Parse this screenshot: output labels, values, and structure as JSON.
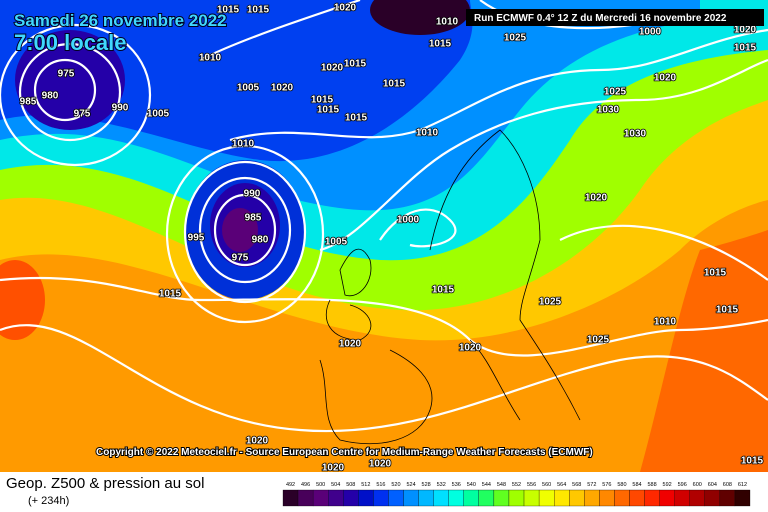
{
  "header": {
    "date": "Samedi 26 novembre 2022",
    "time": "7:00 locale",
    "run": "Run ECMWF 0.4° 12 Z du Mercredi 16 novembre 2022",
    "copyright": "Copyright © 2022 Meteociel.fr - Source European Centre for Medium-Range Weather Forecasts (ECMWF)"
  },
  "footer": {
    "title": "Geop. Z500 & pression au sol",
    "lead": "(+ 234h)"
  },
  "isobar_labels": [
    "1015",
    "1015",
    "1020",
    "1010",
    "1015",
    "1025",
    "1000",
    "1020",
    "1015",
    "1010",
    "1020",
    "1015",
    "1005",
    "1020",
    "1015",
    "1015",
    "975",
    "985",
    "980",
    "975",
    "990",
    "1005",
    "1015",
    "1020",
    "1025",
    "1030",
    "1015",
    "1010",
    "1030",
    "1010",
    "1020",
    "990",
    "985",
    "980",
    "995",
    "975",
    "1005",
    "1000",
    "1015",
    "1015",
    "1025",
    "1015",
    "1015",
    "1010",
    "1025",
    "1020",
    "1020",
    "1020",
    "1015",
    "1020",
    "1020"
  ],
  "scale": [
    {
      "label": "492",
      "color": "#2a0028"
    },
    {
      "label": "496",
      "color": "#48005a"
    },
    {
      "label": "500",
      "color": "#5a0078"
    },
    {
      "label": "504",
      "color": "#40008c"
    },
    {
      "label": "508",
      "color": "#2400a8"
    },
    {
      "label": "512",
      "color": "#0010c8"
    },
    {
      "label": "516",
      "color": "#0030f0"
    },
    {
      "label": "520",
      "color": "#0060ff"
    },
    {
      "label": "524",
      "color": "#0090ff"
    },
    {
      "label": "528",
      "color": "#00b8ff"
    },
    {
      "label": "532",
      "color": "#00e0ff"
    },
    {
      "label": "536",
      "color": "#00ffe0"
    },
    {
      "label": "540",
      "color": "#00ffa0"
    },
    {
      "label": "544",
      "color": "#20ff60"
    },
    {
      "label": "548",
      "color": "#60ff20"
    },
    {
      "label": "552",
      "color": "#a0ff00"
    },
    {
      "label": "556",
      "color": "#c8ff00"
    },
    {
      "label": "560",
      "color": "#f0ff00"
    },
    {
      "label": "564",
      "color": "#ffe800"
    },
    {
      "label": "568",
      "color": "#ffc800"
    },
    {
      "label": "572",
      "color": "#ffa800"
    },
    {
      "label": "576",
      "color": "#ff8800"
    },
    {
      "label": "580",
      "color": "#ff6800"
    },
    {
      "label": "584",
      "color": "#ff4800"
    },
    {
      "label": "588",
      "color": "#ff2800"
    },
    {
      "label": "592",
      "color": "#f00000"
    },
    {
      "label": "596",
      "color": "#d00000"
    },
    {
      "label": "600",
      "color": "#b00000"
    },
    {
      "label": "604",
      "color": "#900000"
    },
    {
      "label": "608",
      "color": "#600000"
    },
    {
      "label": "612",
      "color": "#300000"
    }
  ]
}
